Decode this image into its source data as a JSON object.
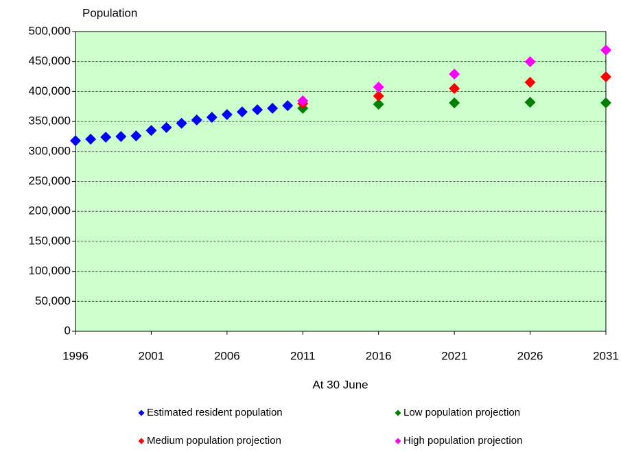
{
  "chart_data": {
    "type": "scatter",
    "y_label": "Population",
    "x_label": "At 30 June",
    "xlim": [
      1996,
      2031
    ],
    "xticks": [
      1996,
      2001,
      2006,
      2011,
      2016,
      2021,
      2026,
      2031
    ],
    "ylim": [
      0,
      500000
    ],
    "yticks": [
      0,
      {
        "value": 50000,
        "label": "50,000"
      },
      {
        "value": 100000,
        "label": "100,000"
      },
      {
        "value": 150000,
        "label": "150,000"
      },
      {
        "value": 200000,
        "label": "200,000"
      },
      {
        "value": 250000,
        "label": "250,000"
      },
      {
        "value": 300000,
        "label": "300,000"
      },
      {
        "value": 350000,
        "label": "350,000"
      },
      {
        "value": 400000,
        "label": "400,000"
      },
      {
        "value": 450000,
        "label": "450,000"
      },
      {
        "value": 500000,
        "label": "500,000"
      }
    ],
    "grid": true,
    "plot_background": "#ccffcc",
    "series": [
      {
        "name": "Estimated resident population",
        "color": "#0000ff",
        "x": [
          1996,
          1997,
          1998,
          1999,
          2000,
          2001,
          2002,
          2003,
          2004,
          2005,
          2006,
          2007,
          2008,
          2009,
          2010
        ],
        "values": [
          318000,
          320500,
          323800,
          325000,
          326000,
          335000,
          340000,
          347000,
          352500,
          357000,
          361600,
          366000,
          369600,
          372000,
          376400
        ]
      },
      {
        "name": "Low population projection",
        "color": "#008000",
        "x": [
          2011,
          2016,
          2021,
          2026,
          2031
        ],
        "values": [
          372000,
          378700,
          381000,
          382000,
          381000
        ]
      },
      {
        "name": "Medium population projection",
        "color": "#ff0000",
        "x": [
          2011,
          2016,
          2021,
          2026,
          2031
        ],
        "values": [
          379900,
          392400,
          405000,
          415300,
          424500
        ]
      },
      {
        "name": "High population projection",
        "color": "#ff00ff",
        "x": [
          2011,
          2016,
          2021,
          2026,
          2031
        ],
        "values": [
          384400,
          407300,
          429000,
          449700,
          469100
        ]
      }
    ]
  }
}
